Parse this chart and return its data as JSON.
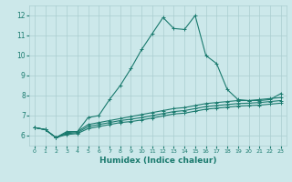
{
  "xlabel": "Humidex (Indice chaleur)",
  "bg_color": "#cce8ea",
  "grid_color": "#aacdd0",
  "line_color": "#1a7a6e",
  "xlim": [
    -0.5,
    23.5
  ],
  "ylim": [
    5.5,
    12.5
  ],
  "xticks": [
    0,
    1,
    2,
    3,
    4,
    5,
    6,
    7,
    8,
    9,
    10,
    11,
    12,
    13,
    14,
    15,
    16,
    17,
    18,
    19,
    20,
    21,
    22,
    23
  ],
  "yticks": [
    6,
    7,
    8,
    9,
    10,
    11,
    12
  ],
  "series": [
    [
      6.4,
      6.3,
      5.9,
      6.2,
      6.2,
      6.9,
      7.0,
      7.8,
      8.5,
      9.35,
      10.3,
      11.1,
      11.9,
      11.35,
      11.3,
      12.0,
      10.0,
      9.6,
      8.3,
      7.8,
      7.75,
      7.75,
      7.8,
      8.1
    ],
    [
      6.4,
      6.3,
      5.9,
      6.15,
      6.2,
      6.55,
      6.65,
      6.75,
      6.85,
      6.95,
      7.05,
      7.15,
      7.25,
      7.35,
      7.4,
      7.5,
      7.6,
      7.65,
      7.7,
      7.75,
      7.75,
      7.8,
      7.85,
      7.9
    ],
    [
      6.4,
      6.3,
      5.9,
      6.1,
      6.15,
      6.45,
      6.55,
      6.65,
      6.75,
      6.82,
      6.9,
      7.0,
      7.1,
      7.2,
      7.25,
      7.35,
      7.45,
      7.5,
      7.55,
      7.6,
      7.62,
      7.65,
      7.7,
      7.75
    ],
    [
      6.4,
      6.3,
      5.9,
      6.05,
      6.1,
      6.35,
      6.45,
      6.55,
      6.65,
      6.7,
      6.78,
      6.88,
      6.98,
      7.08,
      7.12,
      7.22,
      7.32,
      7.37,
      7.42,
      7.47,
      7.5,
      7.52,
      7.57,
      7.62
    ]
  ],
  "marker": "+",
  "marker_size": 3,
  "linewidth": 0.8
}
